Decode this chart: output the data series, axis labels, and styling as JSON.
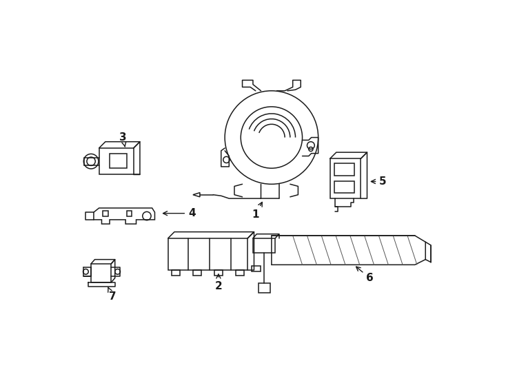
{
  "background_color": "#ffffff",
  "line_color": "#1a1a1a",
  "line_width": 1.1,
  "label_fontsize": 11,
  "figsize": [
    7.34,
    5.4
  ],
  "dpi": 100
}
